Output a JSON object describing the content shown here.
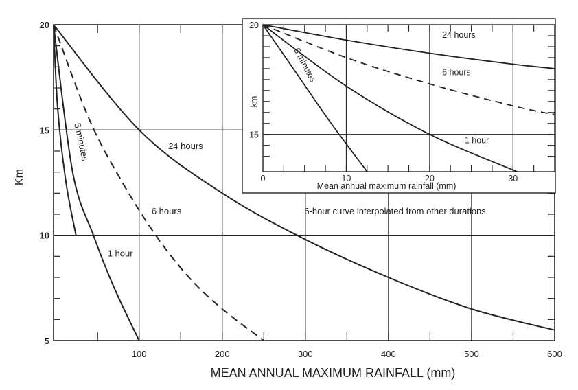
{
  "chart_data": [
    {
      "type": "line",
      "xlabel": "MEAN ANNUAL MAXIMUM RAINFALL (mm)",
      "ylabel": "Km",
      "xlim": [
        -3,
        600
      ],
      "ylim": [
        5,
        20
      ],
      "x_ticks": [
        "100",
        "200",
        "300",
        "400",
        "500",
        "600"
      ],
      "x_tick_values": [
        100,
        200,
        300,
        400,
        500,
        600
      ],
      "y_ticks": [
        "20",
        "15",
        "10",
        "5"
      ],
      "y_tick_values": [
        20,
        15,
        10,
        5
      ],
      "grid": true,
      "note": "6-hour curve interpolated from other durations",
      "series": [
        {
          "name": "5 minutes",
          "style": "solid",
          "x": [
            -3,
            2,
            12,
            24
          ],
          "y": [
            20,
            16,
            12.5,
            10
          ]
        },
        {
          "name": "1 hour",
          "style": "solid",
          "x": [
            -3,
            20,
            45,
            70,
            100
          ],
          "y": [
            20,
            13,
            10,
            7.5,
            5
          ]
        },
        {
          "name": "6 hours",
          "style": "dashed",
          "x": [
            -3,
            40,
            80,
            120,
            160,
            200,
            250
          ],
          "y": [
            20,
            15.5,
            12.5,
            10,
            8,
            6.5,
            5
          ]
        },
        {
          "name": "24 hours",
          "style": "solid",
          "x": [
            -3,
            100,
            200,
            300,
            400,
            500,
            600
          ],
          "y": [
            20,
            15,
            12,
            9.8,
            8,
            6.5,
            5.5
          ]
        }
      ]
    },
    {
      "type": "line",
      "xlabel": "Mean annual maximum rainfall (mm)",
      "ylabel": "km",
      "xlim": [
        0,
        35
      ],
      "ylim": [
        13.3,
        20
      ],
      "x_ticks": [
        "0",
        "10",
        "20",
        "30"
      ],
      "x_tick_values": [
        0,
        10,
        20,
        30
      ],
      "y_ticks": [
        "20",
        "15"
      ],
      "y_tick_values": [
        20,
        15
      ],
      "grid": true,
      "series": [
        {
          "name": "5 minutes",
          "style": "solid",
          "x": [
            0,
            4,
            8,
            12.5
          ],
          "y": [
            20,
            17.8,
            15.6,
            13.3
          ]
        },
        {
          "name": "1 hour",
          "style": "solid",
          "x": [
            0,
            10,
            20,
            30.5
          ],
          "y": [
            20,
            17.2,
            15,
            13.3
          ]
        },
        {
          "name": "6 hours",
          "style": "dashed",
          "x": [
            0,
            10,
            20,
            30,
            35
          ],
          "y": [
            20,
            18.5,
            17.3,
            16.3,
            15.9
          ]
        },
        {
          "name": "24 hours",
          "style": "solid",
          "x": [
            0,
            10,
            20,
            30,
            35
          ],
          "y": [
            20,
            19.3,
            18.7,
            18.2,
            18
          ]
        }
      ]
    }
  ]
}
